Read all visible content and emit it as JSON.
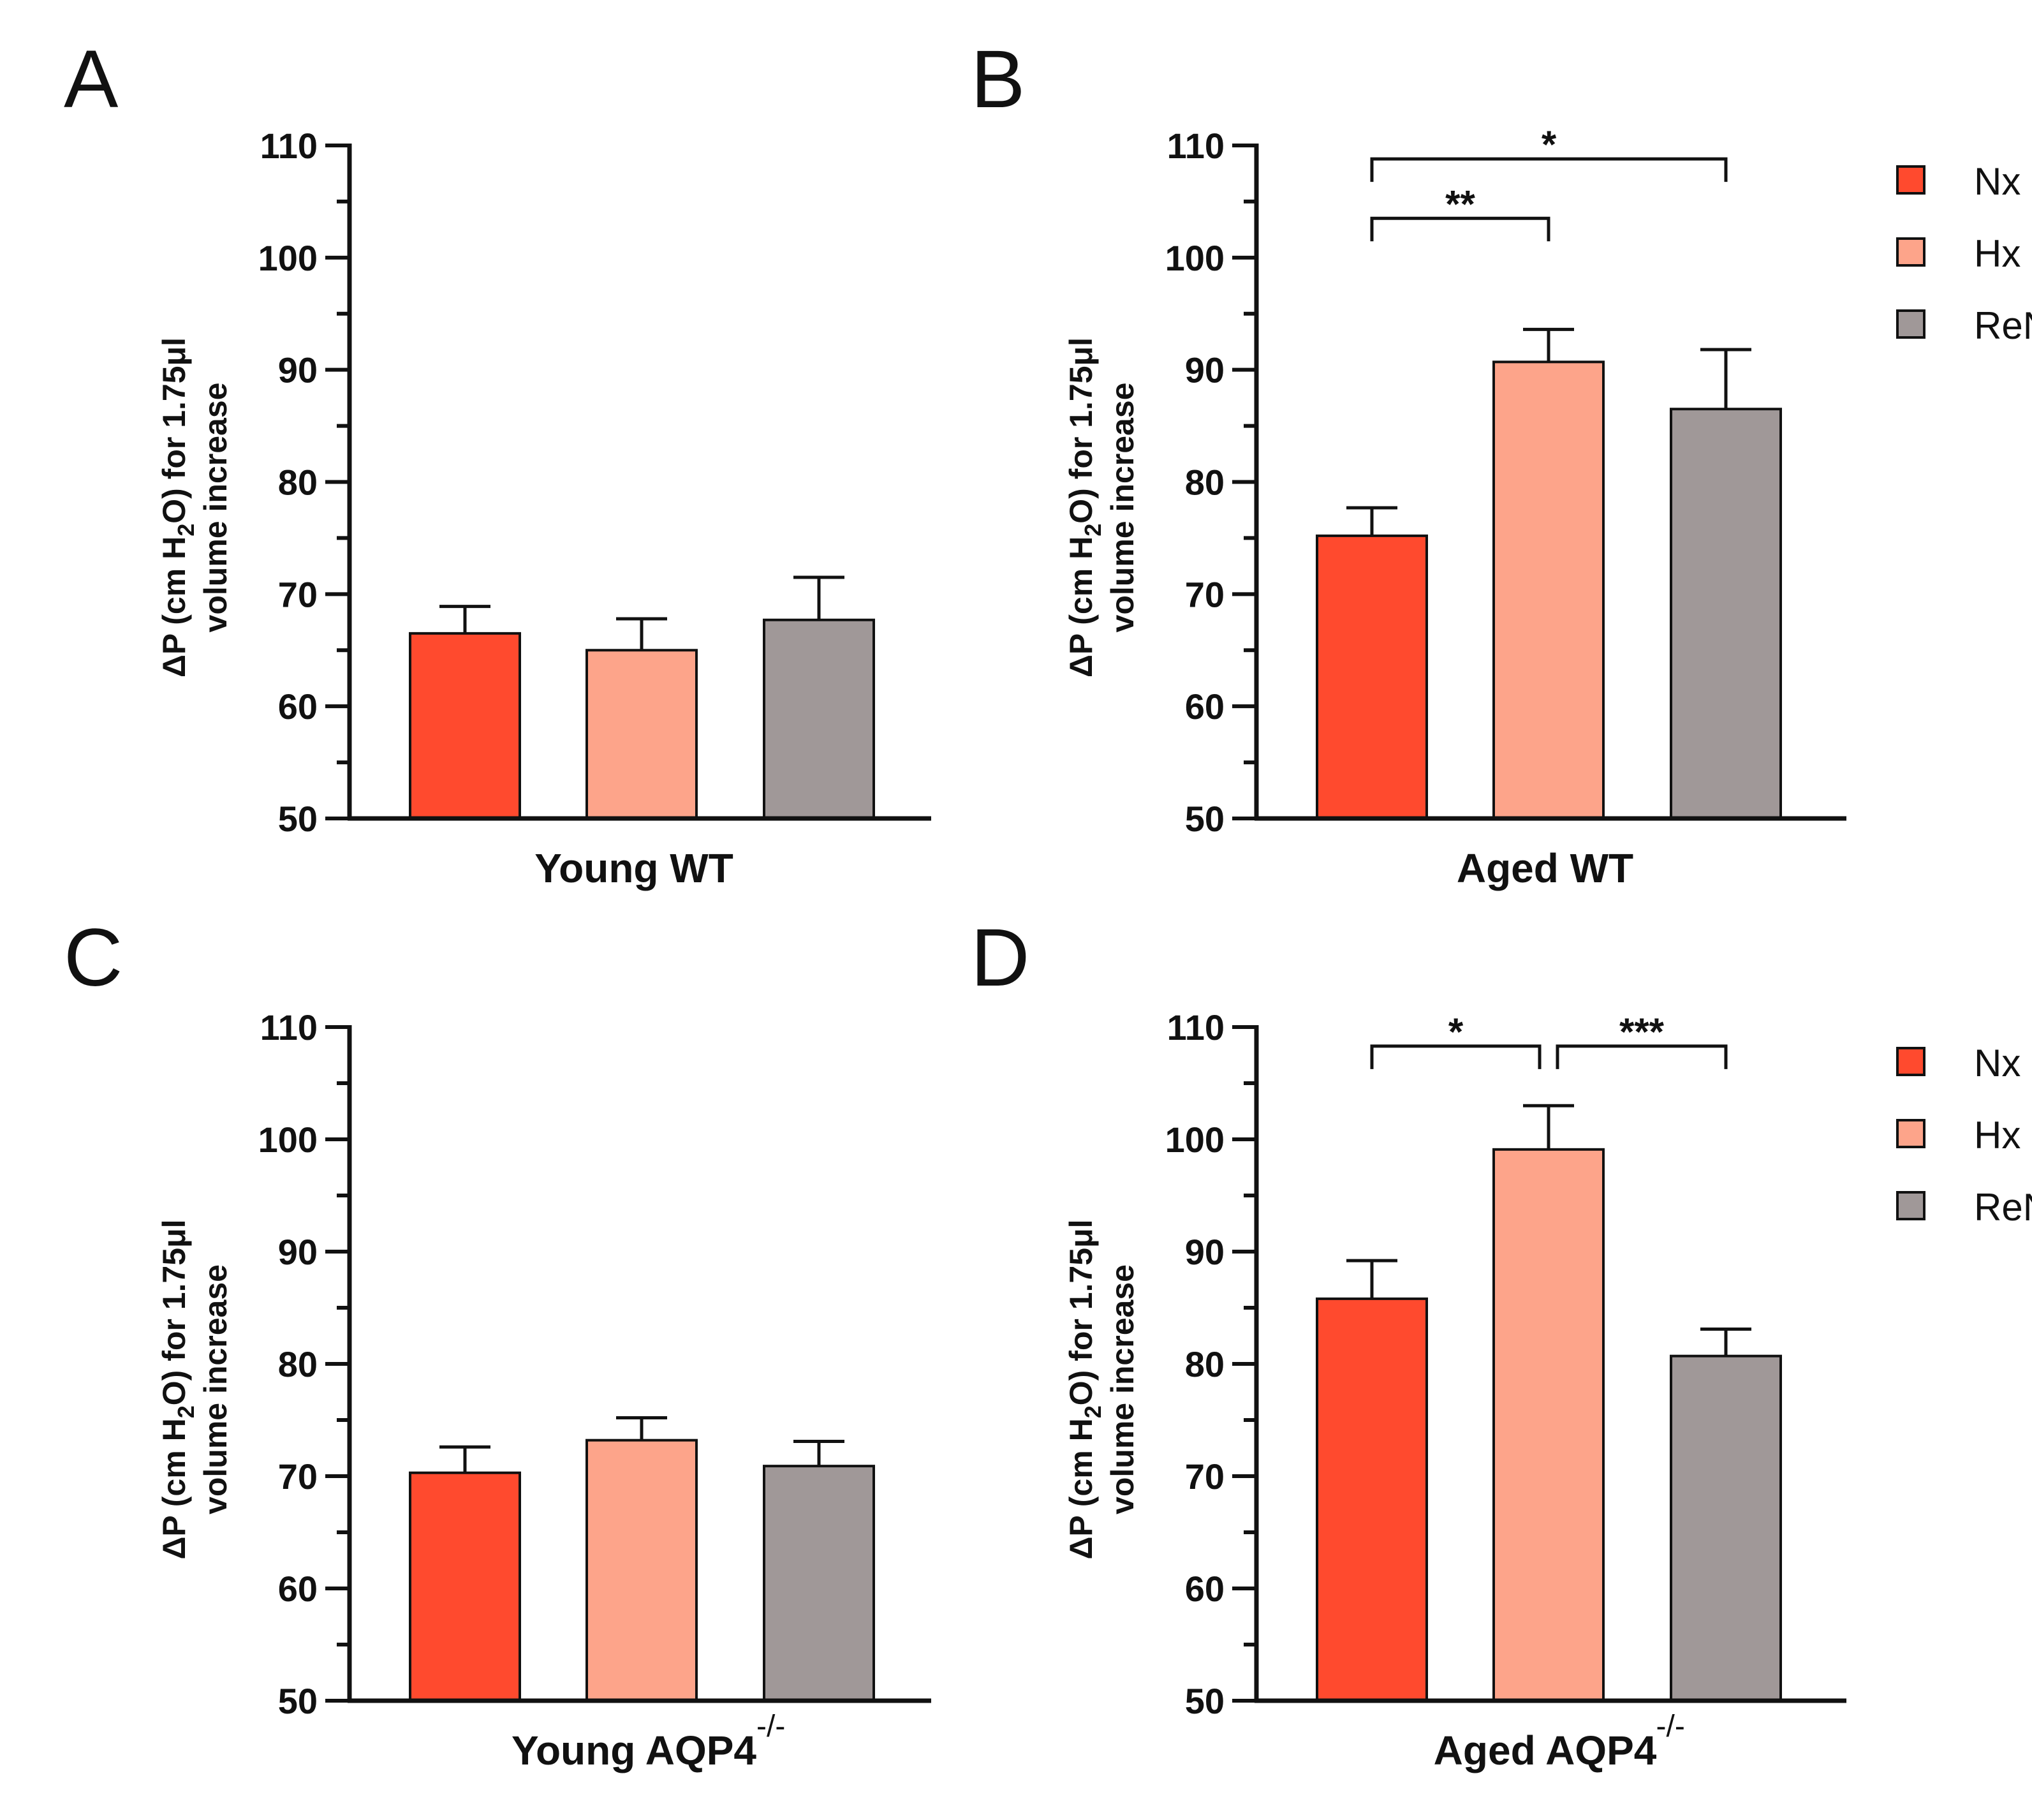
{
  "colors": {
    "Nx": "#ff4a2e",
    "Hx": "#fda48a",
    "ReNx": "#a09898",
    "ink": "#111111"
  },
  "legend": [
    "Nx",
    "Hx",
    "ReNx"
  ],
  "chart_data": [
    {
      "panel": "A",
      "type": "bar",
      "categories": [
        "Nx",
        "Hx",
        "ReNx"
      ],
      "values": [
        66.5,
        65.0,
        67.7
      ],
      "errors": [
        2.4,
        2.8,
        3.8
      ],
      "xlabel": "Young WT",
      "xlabel_sup": "",
      "ylabel_line1": "ΔP (cm H",
      "ylabel_sub": "2",
      "ylabel_line1b": "O) for 1.75μl",
      "ylabel_line2": "volume increase",
      "ylim": [
        50,
        110
      ],
      "yticks": [
        "50",
        "60",
        "70",
        "80",
        "90",
        "100",
        "110"
      ],
      "legend": false,
      "significance": []
    },
    {
      "panel": "B",
      "type": "bar",
      "categories": [
        "Nx",
        "Hx",
        "ReNx"
      ],
      "values": [
        75.2,
        90.7,
        86.5
      ],
      "errors": [
        2.5,
        2.9,
        5.3
      ],
      "xlabel": "Aged WT",
      "xlabel_sup": "",
      "ylabel_line1": "ΔP (cm H",
      "ylabel_sub": "2",
      "ylabel_line1b": "O) for 1.75μl",
      "ylabel_line2": "volume increase",
      "ylim": [
        50,
        110
      ],
      "yticks": [
        "50",
        "60",
        "70",
        "80",
        "90",
        "100",
        "110"
      ],
      "legend": true,
      "significance": [
        {
          "from": 0,
          "to": 1,
          "y": 103.5,
          "label": "**"
        },
        {
          "from": 0,
          "to": 2,
          "y": 108.8,
          "label": "*"
        }
      ]
    },
    {
      "panel": "C",
      "type": "bar",
      "categories": [
        "Nx",
        "Hx",
        "ReNx"
      ],
      "values": [
        70.3,
        73.2,
        70.9
      ],
      "errors": [
        2.3,
        2.0,
        2.2
      ],
      "xlabel": "Young AQP4",
      "xlabel_sup": "-/-",
      "ylabel_line1": "ΔP (cm H",
      "ylabel_sub": "2",
      "ylabel_line1b": "O) for 1.75μl",
      "ylabel_line2": "volume increase",
      "ylim": [
        50,
        110
      ],
      "yticks": [
        "50",
        "60",
        "70",
        "80",
        "90",
        "100",
        "110"
      ],
      "legend": false,
      "significance": []
    },
    {
      "panel": "D",
      "type": "bar",
      "categories": [
        "Nx",
        "Hx",
        "ReNx"
      ],
      "values": [
        85.8,
        99.1,
        80.7
      ],
      "errors": [
        3.4,
        3.9,
        2.4
      ],
      "xlabel": "Aged AQP4",
      "xlabel_sup": "-/-",
      "ylabel_line1": "ΔP (cm H",
      "ylabel_sub": "2",
      "ylabel_line1b": "O) for 1.75μl",
      "ylabel_line2": "volume increase",
      "ylim": [
        50,
        110
      ],
      "yticks": [
        "50",
        "60",
        "70",
        "80",
        "90",
        "100",
        "110"
      ],
      "legend": true,
      "significance": [
        {
          "from": 0,
          "to": 1,
          "y": 108.3,
          "label": "*"
        },
        {
          "from": 1,
          "to": 2,
          "y": 108.3,
          "label": "***"
        }
      ]
    }
  ]
}
